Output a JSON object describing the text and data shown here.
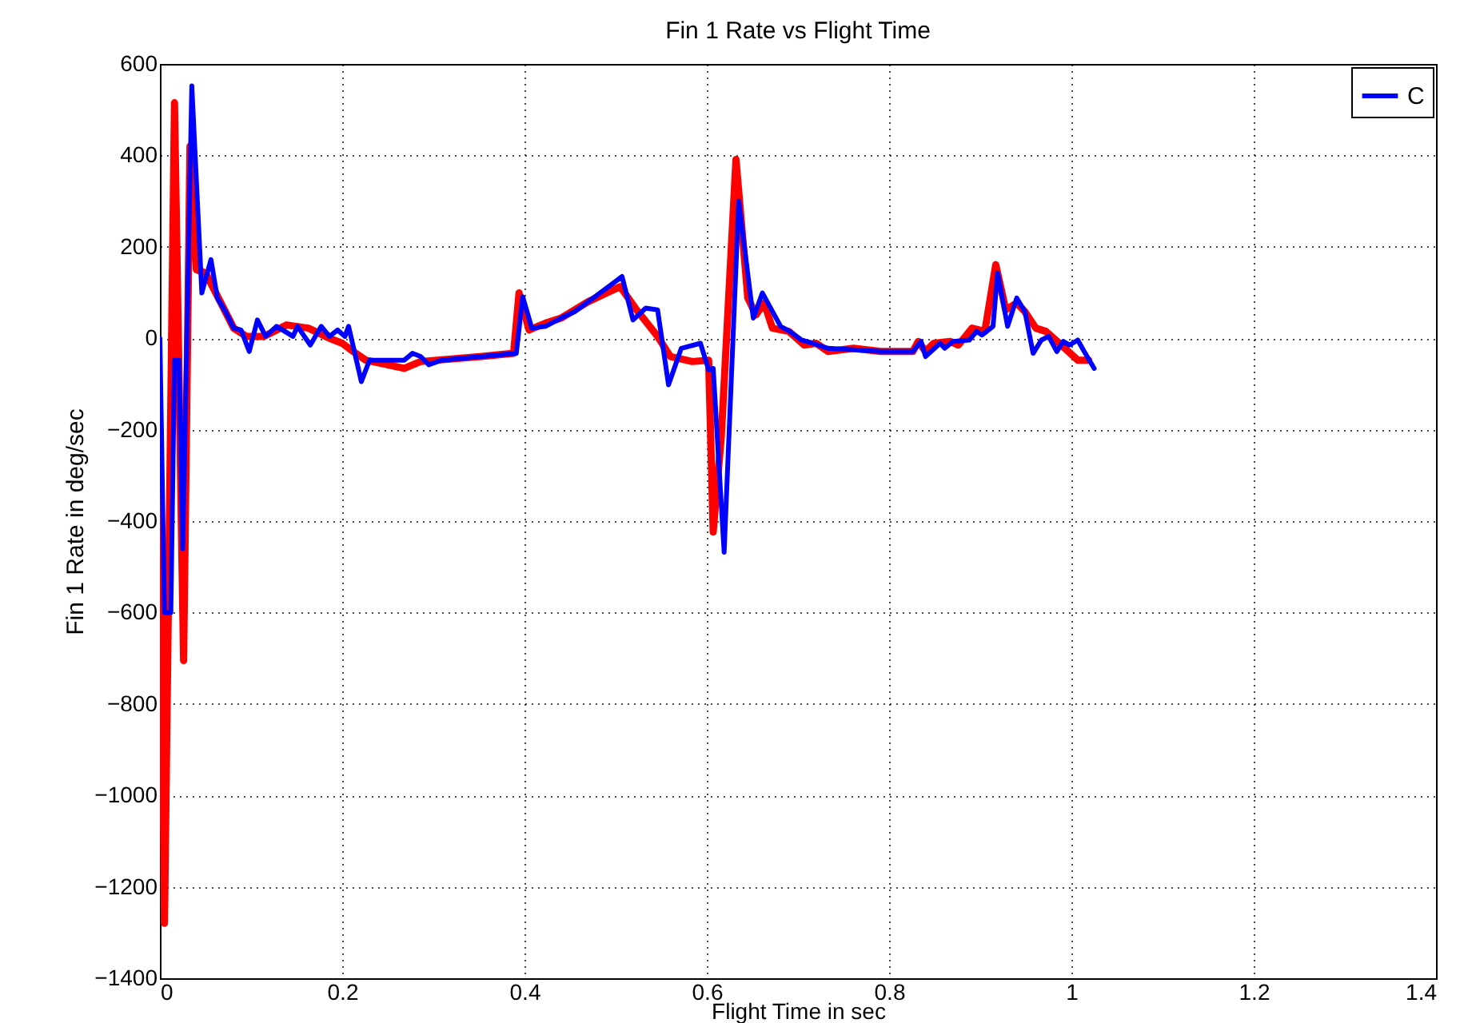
{
  "chart_data": {
    "type": "line",
    "title": "Fin 1 Rate vs Flight Time",
    "xlabel": "Flight Time in sec",
    "ylabel": "Fin 1 Rate in deg/sec",
    "xlim": [
      0,
      1.4
    ],
    "xticks": [
      0,
      0.2,
      0.4,
      0.6,
      0.8,
      1,
      1.2,
      1.4
    ],
    "ylim": [
      -1400,
      600
    ],
    "yticks": [
      -1400,
      -1200,
      -1000,
      -800,
      -600,
      -400,
      -200,
      0,
      200,
      400,
      600
    ],
    "grid": true,
    "legend": "top right",
    "line_style": "solid",
    "series": [
      {
        "color": "#ff0000",
        "x": [
          0,
          0.005,
          0.016,
          0.026,
          0.033,
          0.04,
          0.05,
          0.067,
          0.081,
          0.095,
          0.114,
          0.139,
          0.163,
          0.186,
          0.2,
          0.212,
          0.226,
          0.268,
          0.286,
          0.353,
          0.388,
          0.394,
          0.405,
          0.423,
          0.44,
          0.47,
          0.505,
          0.523,
          0.546,
          0.56,
          0.584,
          0.602,
          0.607,
          0.616,
          0.632,
          0.645,
          0.654,
          0.663,
          0.672,
          0.69,
          0.707,
          0.72,
          0.733,
          0.761,
          0.791,
          0.826,
          0.832,
          0.84,
          0.849,
          0.867,
          0.876,
          0.891,
          0.905,
          0.917,
          0.928,
          0.94,
          0.949,
          0.961,
          0.972,
          0.989,
          1.007,
          1.019
        ],
        "values": [
          -200,
          -1280,
          515,
          -705,
          420,
          150,
          143,
          77,
          22,
          4,
          4,
          29,
          22,
          0,
          -11,
          -29,
          -48,
          -66,
          -51,
          -40,
          -33,
          99,
          18,
          33,
          44,
          80,
          113,
          62,
          4,
          -40,
          -51,
          -48,
          -424,
          -212,
          391,
          88,
          51,
          77,
          22,
          15,
          -15,
          -11,
          -29,
          -22,
          -29,
          -29,
          -7,
          -29,
          -11,
          -7,
          -15,
          22,
          15,
          161,
          62,
          77,
          58,
          22,
          15,
          -15,
          -48,
          -48
        ]
      },
      {
        "name": "C",
        "color": "#0000ff",
        "x": [
          0,
          0.005,
          0.012,
          0.016,
          0.021,
          0.025,
          0.035,
          0.046,
          0.056,
          0.063,
          0.072,
          0.081,
          0.089,
          0.098,
          0.107,
          0.116,
          0.128,
          0.137,
          0.146,
          0.151,
          0.165,
          0.177,
          0.186,
          0.195,
          0.203,
          0.207,
          0.221,
          0.23,
          0.268,
          0.277,
          0.286,
          0.295,
          0.309,
          0.391,
          0.398,
          0.408,
          0.423,
          0.44,
          0.455,
          0.47,
          0.507,
          0.519,
          0.533,
          0.546,
          0.558,
          0.572,
          0.593,
          0.602,
          0.607,
          0.619,
          0.635,
          0.651,
          0.661,
          0.681,
          0.691,
          0.704,
          0.716,
          0.733,
          0.791,
          0.826,
          0.835,
          0.84,
          0.856,
          0.861,
          0.87,
          0.888,
          0.896,
          0.902,
          0.914,
          0.919,
          0.93,
          0.94,
          0.949,
          0.958,
          0.967,
          0.975,
          0.984,
          0.991,
          0.998,
          1.007,
          1.014,
          1.025
        ],
        "values": [
          0,
          -600,
          -600,
          -48,
          -48,
          -460,
          552,
          99,
          172,
          88,
          58,
          22,
          18,
          -29,
          40,
          4,
          26,
          15,
          4,
          26,
          -15,
          26,
          4,
          18,
          4,
          26,
          -95,
          -48,
          -48,
          -33,
          -40,
          -58,
          -48,
          -33,
          91,
          22,
          26,
          44,
          58,
          80,
          135,
          40,
          66,
          62,
          -102,
          -22,
          -11,
          -69,
          -66,
          -468,
          300,
          44,
          99,
          26,
          15,
          -4,
          -11,
          -22,
          -29,
          -29,
          -7,
          -40,
          -11,
          -22,
          -7,
          -4,
          15,
          7,
          26,
          143,
          26,
          88,
          58,
          -33,
          -4,
          4,
          -29,
          -7,
          -15,
          -4,
          -29,
          -66
        ]
      }
    ]
  }
}
